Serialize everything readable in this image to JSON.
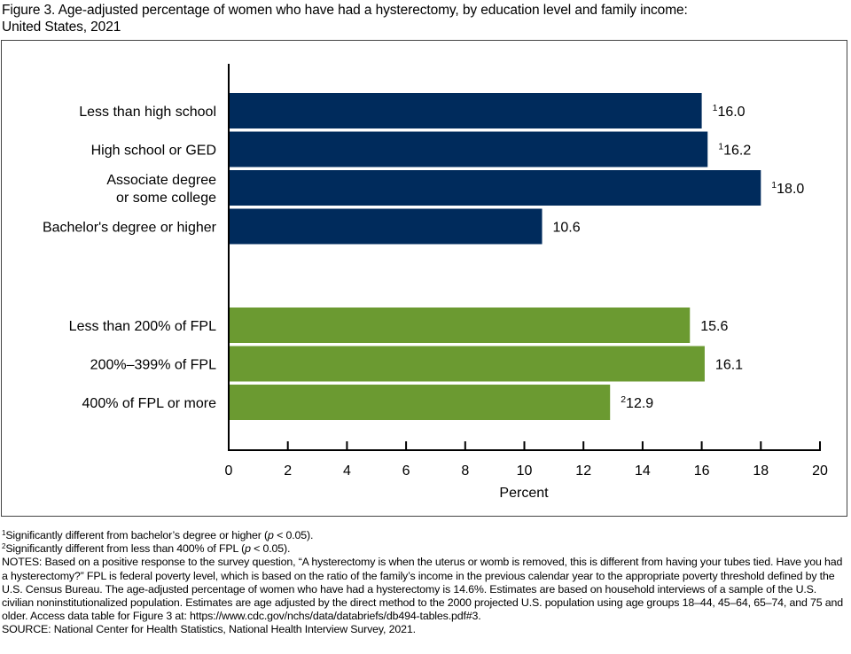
{
  "title": "Figure 3. Age-adjusted percentage of women who have had a hysterectomy, by education level and family income: United States, 2021",
  "title_lines": [
    "Figure 3. Age-adjusted percentage of women who have had a hysterectomy, by education level and family income:",
    "United States, 2021"
  ],
  "colors": {
    "education": "#002b5c",
    "income": "#6b9a31",
    "axis": "#000000"
  },
  "chart_data": {
    "type": "bar",
    "orientation": "horizontal",
    "title": "Age-adjusted percentage of women who have had a hysterectomy, by education level and family income: United States, 2021",
    "xlabel": "Percent",
    "ylabel": "",
    "xlim": [
      0,
      20
    ],
    "xticks": [
      0,
      2,
      4,
      6,
      8,
      10,
      12,
      14,
      16,
      18,
      20
    ],
    "grid": false,
    "groups": [
      {
        "name": "Education level",
        "color": "#002b5c",
        "bars": [
          {
            "label_lines": [
              "Less than high school"
            ],
            "label": "Less than high school",
            "value": 16.0,
            "display": "16.0",
            "footnote": "1"
          },
          {
            "label_lines": [
              "High school or GED"
            ],
            "label": "High school or GED",
            "value": 16.2,
            "display": "16.2",
            "footnote": "1"
          },
          {
            "label_lines": [
              "Associate degree",
              "or some college"
            ],
            "label": "Associate degree or some college",
            "value": 18.0,
            "display": "18.0",
            "footnote": "1"
          },
          {
            "label_lines": [
              "Bachelor's degree or higher"
            ],
            "label": "Bachelor's degree or higher",
            "value": 10.6,
            "display": "10.6",
            "footnote": ""
          }
        ]
      },
      {
        "name": "Family income",
        "color": "#6b9a31",
        "bars": [
          {
            "label_lines": [
              "Less than 200% of FPL"
            ],
            "label": "Less than 200% of FPL",
            "value": 15.6,
            "display": "15.6",
            "footnote": ""
          },
          {
            "label_lines": [
              "200%–399% of FPL"
            ],
            "label": "200%–399% of FPL",
            "value": 16.1,
            "display": "16.1",
            "footnote": ""
          },
          {
            "label_lines": [
              "400% of FPL or more"
            ],
            "label": "400% of FPL or more",
            "value": 12.9,
            "display": "12.9",
            "footnote": "2"
          }
        ]
      }
    ]
  },
  "footnotes": {
    "fn1_mark": "1",
    "fn1_a": "Significantly different from bachelor’s degree or higher (",
    "fn1_p": "p",
    "fn1_b": " < 0.05).",
    "fn2_mark": "2",
    "fn2_a": "Significantly different from less than 400% of FPL (",
    "fn2_p": "p",
    "fn2_b": " < 0.05).",
    "notes": "NOTES: Based on a positive response to the survey question, “A hysterectomy is when the uterus or womb is removed, this is different from having your tubes tied. Have you had a hysterectomy?” FPL is federal poverty level, which is based on the ratio of the family’s income in the previous calendar year to the appropriate poverty threshold defined by the U.S. Census Bureau. The age-adjusted percentage of women who have had a hysterectomy is 14.6%. Estimates are based on household interviews of a sample of the U.S. civilian noninstitutionalized population. Estimates are age adjusted by the direct method to the 2000 projected U.S. population using age groups 18–44, 45–64, 65–74, and 75 and older. Access data table for Figure 3 at: https://www.cdc.gov/nchs/data/databriefs/db494-tables.pdf#3.",
    "source": "SOURCE: National Center for Health Statistics, National Health Interview Survey, 2021."
  }
}
